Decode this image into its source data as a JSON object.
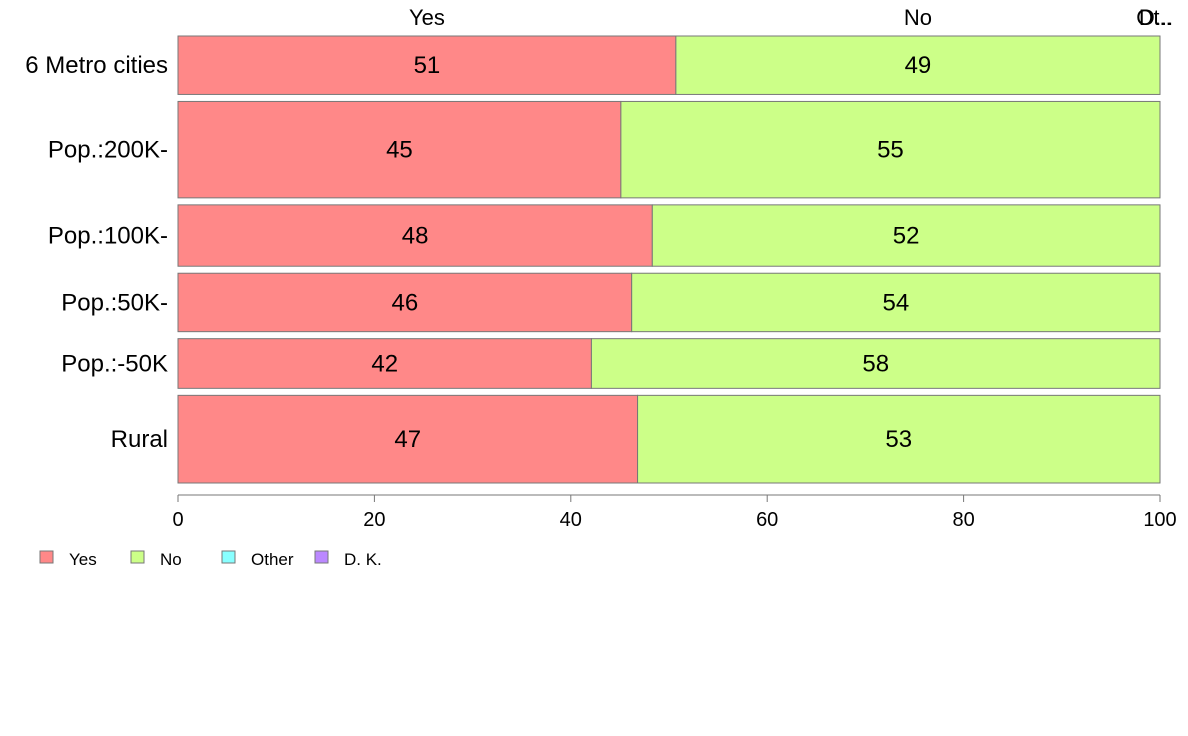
{
  "chart_data": {
    "type": "bar",
    "orientation": "horizontal",
    "stacked": true,
    "categories": [
      "6 Metro cities",
      "Pop.:200K-",
      "Pop.:100K-",
      "Pop.:50K-",
      "Pop.:-50K",
      "Rural"
    ],
    "series": [
      {
        "name": "Yes",
        "color": "#ff8888",
        "values": [
          50.7,
          45.1,
          48.3,
          46.2,
          42.1,
          46.8
        ]
      },
      {
        "name": "No",
        "color": "#ccff88",
        "values": [
          49.3,
          54.9,
          51.7,
          53.8,
          57.9,
          53.2
        ]
      },
      {
        "name": "Other",
        "color": "#88ffff",
        "values": [
          0,
          0,
          0,
          0,
          0,
          0
        ]
      },
      {
        "name": "D. K.",
        "color": "#bb88ff",
        "values": [
          0,
          0,
          0,
          0,
          0,
          0
        ]
      }
    ],
    "segment_labels": [
      [
        "51",
        "49"
      ],
      [
        "45",
        "55"
      ],
      [
        "48",
        "52"
      ],
      [
        "46",
        "54"
      ],
      [
        "42",
        "58"
      ],
      [
        "47",
        "53"
      ]
    ],
    "bar_weights": [
      1.0,
      1.65,
      1.05,
      1.0,
      0.85,
      1.5
    ],
    "top_labels": [
      "Yes",
      "No",
      "Ot..",
      "D..."
    ],
    "xlim": [
      0,
      100
    ],
    "x_ticks": [
      0,
      20,
      40,
      60,
      80,
      100
    ],
    "xlabel": "",
    "ylabel": "",
    "legend_position": "bottom-left",
    "grid": false
  }
}
